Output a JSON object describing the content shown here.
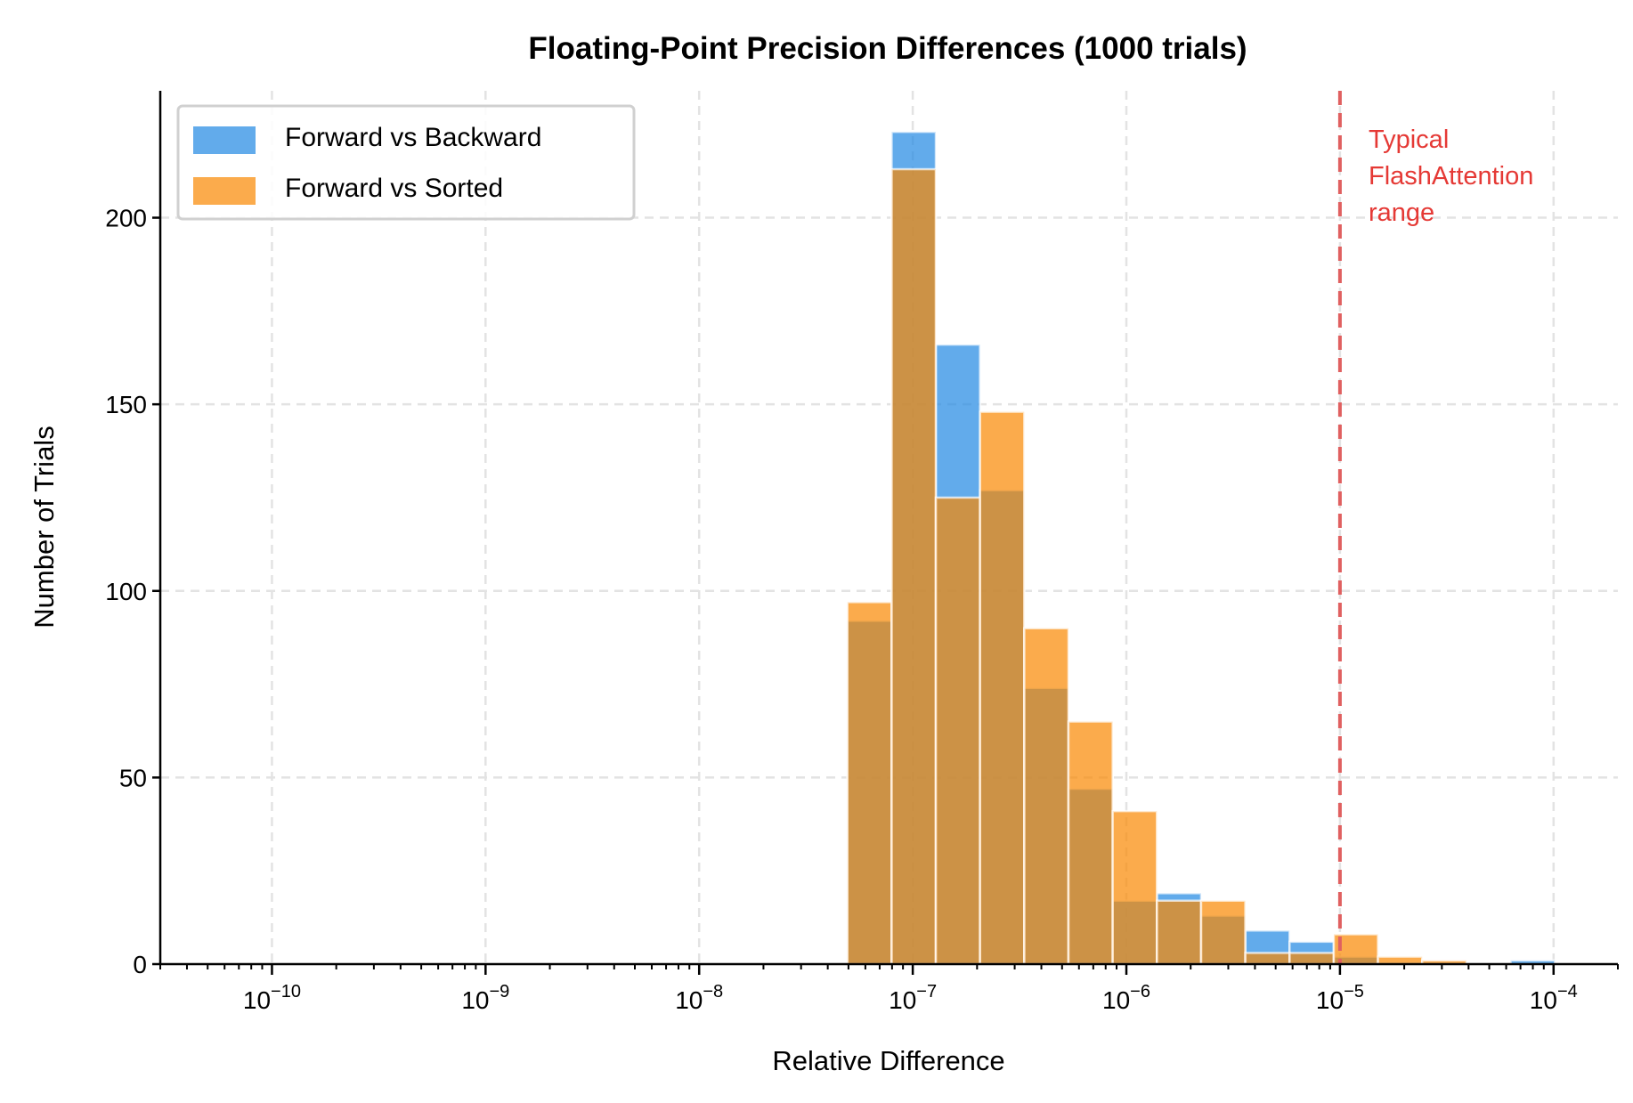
{
  "chart_data": {
    "type": "bar",
    "title": "Floating-Point Precision Differences (1000 trials)",
    "xlabel": "Relative Difference",
    "ylabel": "Number of Trials",
    "xscale": "log",
    "xlim": [
      3e-11,
      0.0002
    ],
    "ylim": [
      0,
      234
    ],
    "xticks": [
      {
        "value": 1e-10,
        "base": "10",
        "exp": "−10"
      },
      {
        "value": 1e-09,
        "base": "10",
        "exp": "−9"
      },
      {
        "value": 1e-08,
        "base": "10",
        "exp": "−8"
      },
      {
        "value": 1e-07,
        "base": "10",
        "exp": "−7"
      },
      {
        "value": 1e-06,
        "base": "10",
        "exp": "−6"
      },
      {
        "value": 1e-05,
        "base": "10",
        "exp": "−5"
      },
      {
        "value": 0.0001,
        "base": "10",
        "exp": "−4"
      }
    ],
    "yticks": [
      "0",
      "50",
      "100",
      "150",
      "200"
    ],
    "grid": true,
    "legend_placement": "top-left",
    "series": [
      {
        "name": "Forward vs Backward",
        "color": "#1f87e2",
        "values": [
          92,
          223,
          166,
          127,
          74,
          47,
          17,
          19,
          13,
          9,
          6,
          2,
          0,
          0,
          0,
          1
        ]
      },
      {
        "name": "Forward vs Sorted",
        "color": "#f98800",
        "values": [
          97,
          213,
          125,
          148,
          90,
          65,
          41,
          17,
          17,
          3,
          3,
          8,
          2,
          1,
          0,
          0
        ]
      }
    ],
    "reference_line": {
      "x": 1e-05,
      "color": "#e06060",
      "style": "dashed"
    },
    "annotation": {
      "lines": [
        "Typical",
        "FlashAttention",
        "range"
      ],
      "color": "#e53935"
    }
  }
}
